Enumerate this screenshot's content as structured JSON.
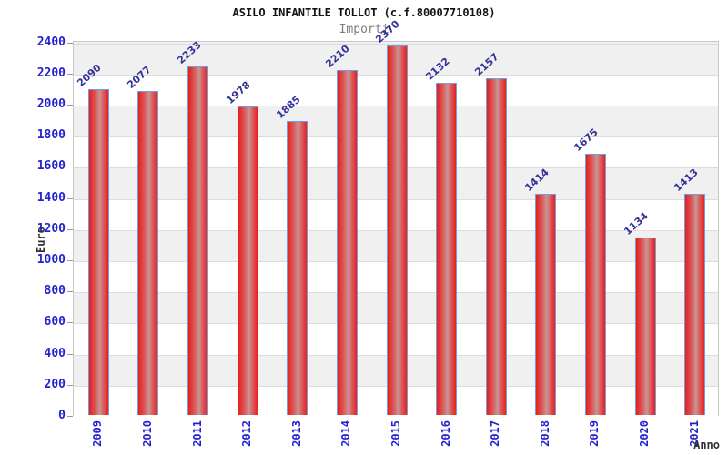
{
  "title": "ASILO INFANTILE TOLLOT (c.f.80007710108)",
  "subtitle": "Importi",
  "chart_data": {
    "type": "bar",
    "title": "ASILO INFANTILE TOLLOT (c.f.80007710108)",
    "subtitle": "Importi",
    "xlabel": "Anno",
    "ylabel": "Euro",
    "categories": [
      "2009",
      "2010",
      "2011",
      "2012",
      "2013",
      "2014",
      "2015",
      "2016",
      "2017",
      "2018",
      "2019",
      "2020",
      "2021"
    ],
    "values": [
      2090,
      2077,
      2233,
      1978,
      1885,
      2210,
      2370,
      2132,
      2157,
      1414,
      1675,
      1134,
      1413
    ],
    "ylim": [
      0,
      2410
    ],
    "ytick_step": 200,
    "ytick_max": 2400,
    "grid": "horizontal alternating bands of 200 units, gray band directly under each even multiple of 400 (2400-2200 gray, 2200-2000 white, ...)",
    "legend_position": "none",
    "colors": {
      "bar_gradient": [
        "#e32020",
        "#df5050",
        "#c69595",
        "#dd5858",
        "#ea1f1f"
      ],
      "bar_border": "#6b9fe4",
      "tick_label": "#2222d4",
      "value_label": "#333399",
      "axis_title": "#333333",
      "band_gray": "#f0f0f0",
      "band_white": "#ffffff",
      "grid_line": "#dcdcdc",
      "plot_border": "#c8c8c8",
      "title_color": "#111111",
      "subtitle_color": "#7d7d7d"
    }
  }
}
